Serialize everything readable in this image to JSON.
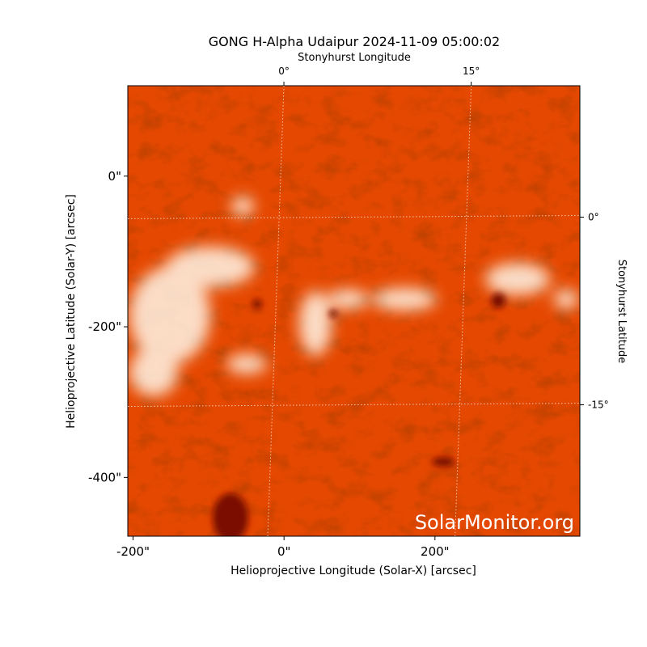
{
  "chart_data": {
    "type": "image",
    "title": "GONG H-Alpha Udaipur 2024-11-09 05:00:02",
    "xlabel": "Helioprojective Longitude (Solar-X) [arcsec]",
    "ylabel": "Helioprojective Latitude (Solar-Y) [arcsec]",
    "x2label": "Stonyhurst Longitude",
    "y2label": "Stonyhurst Latitude",
    "watermark": "SolarMonitor.org",
    "xlim": [
      -207,
      392
    ],
    "ylim": [
      -478,
      120
    ],
    "xticks": [
      {
        "value": -200,
        "label": "-200\""
      },
      {
        "value": 0,
        "label": "0\""
      },
      {
        "value": 200,
        "label": "200\""
      }
    ],
    "yticks": [
      {
        "value": 0,
        "label": "0\""
      },
      {
        "value": -200,
        "label": "-200\""
      },
      {
        "value": -400,
        "label": "-400\""
      }
    ],
    "x2lim": [
      -12.5,
      23.7
    ],
    "y2lim": [
      10.5,
      -25.5
    ],
    "x2ticks": [
      {
        "value": 0,
        "label": "0°"
      },
      {
        "value": 15,
        "label": "15°"
      }
    ],
    "y2ticks": [
      {
        "value": 0,
        "label": "0°"
      },
      {
        "value": -15,
        "label": "-15°"
      }
    ],
    "grid": true
  }
}
